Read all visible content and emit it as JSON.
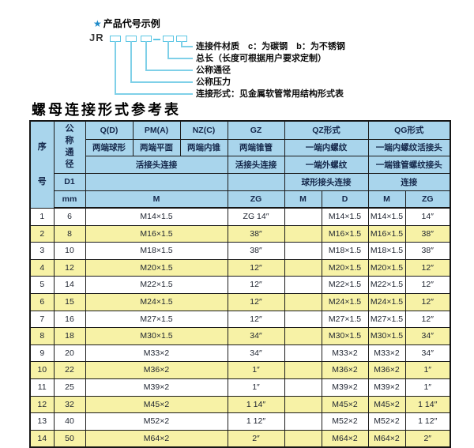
{
  "diagram": {
    "star": "★",
    "heading": "产品代号示例",
    "code_prefix": "JR",
    "labels": [
      "连接件材质　c：为碳钢　b：为不锈钢",
      "总长（长度可根据用户要求定制）",
      "公称通径",
      "公称压力",
      "连接形式：见金属软管常用结构形式表"
    ]
  },
  "table": {
    "title": "螺母连接形式参考表",
    "header": {
      "seq": "序号",
      "dn": "公称通径",
      "d1": "D1",
      "mm": "mm",
      "q": "Q(D)",
      "pm": "PM(A)",
      "nz": "NZ(C)",
      "gz": "GZ",
      "qz": "QZ形式",
      "qg": "QG形式",
      "q_sub": "两端球形",
      "pm_sub": "两端平面",
      "nz_sub": "两端内锥",
      "gz_sub": "两端锥管",
      "qz_sub1": "一端内螺纹",
      "qg_sub1": "一端内螺纹活接头",
      "union_conn": "活接头连接",
      "gz_union": "活接头连接",
      "qz_sub2": "一端外螺纹",
      "qg_sub2": "一端锥管螺纹接头",
      "qz_sub3": "球形接头连接",
      "qg_sub3": "连接",
      "m_wide": "M",
      "zg": "ZG",
      "qz_m": "M",
      "qz_d": "D",
      "qg_m": "M",
      "qg_zg": "ZG"
    },
    "rows": [
      [
        "1",
        "6",
        "M14×1.5",
        "ZG 1/4″",
        "",
        "M14×1.5",
        "M14×1.5",
        "1/4″"
      ],
      [
        "2",
        "8",
        "M16×1.5",
        "3/8″",
        "",
        "M16×1.5",
        "M16×1.5",
        "3/8″"
      ],
      [
        "3",
        "10",
        "M18×1.5",
        "3/8″",
        "",
        "M18×1.5",
        "M18×1.5",
        "3/8″"
      ],
      [
        "4",
        "12",
        "M20×1.5",
        "1/2″",
        "",
        "M20×1.5",
        "M20×1.5",
        "1/2″"
      ],
      [
        "5",
        "14",
        "M22×1.5",
        "1/2″",
        "",
        "M22×1.5",
        "M22×1.5",
        "1/2″"
      ],
      [
        "6",
        "15",
        "M24×1.5",
        "1/2″",
        "",
        "M24×1.5",
        "M24×1.5",
        "1/2″"
      ],
      [
        "7",
        "16",
        "M27×1.5",
        "1/2″",
        "",
        "M27×1.5",
        "M27×1.5",
        "1/2″"
      ],
      [
        "8",
        "18",
        "M30×1.5",
        "3/4″",
        "",
        "M30×1.5",
        "M30×1.5",
        "3/4″"
      ],
      [
        "9",
        "20",
        "M33×2",
        "3/4″",
        "",
        "M33×2",
        "M33×2",
        "3/4″"
      ],
      [
        "10",
        "22",
        "M36×2",
        "1″",
        "",
        "M36×2",
        "M36×2",
        "1″"
      ],
      [
        "11",
        "25",
        "M39×2",
        "1″",
        "",
        "M39×2",
        "M39×2",
        "1″"
      ],
      [
        "12",
        "32",
        "M45×2",
        "1 1/4″",
        "",
        "M45×2",
        "M45×2",
        "1 1/4″"
      ],
      [
        "13",
        "40",
        "M52×2",
        "1 1/2″",
        "",
        "M52×2",
        "M52×2",
        "1 1/2″"
      ],
      [
        "14",
        "50",
        "M64×2",
        "2″",
        "",
        "M64×2",
        "M64×2",
        "2″"
      ]
    ]
  },
  "colors": {
    "header_bg": "#a9d5ec",
    "row_stripe": "#f7f2a6",
    "leader_line": "#7fd0e8",
    "code_box_border": "#5cc6e4",
    "star": "#1d8ac9",
    "table_border": "#1b1b1b"
  }
}
